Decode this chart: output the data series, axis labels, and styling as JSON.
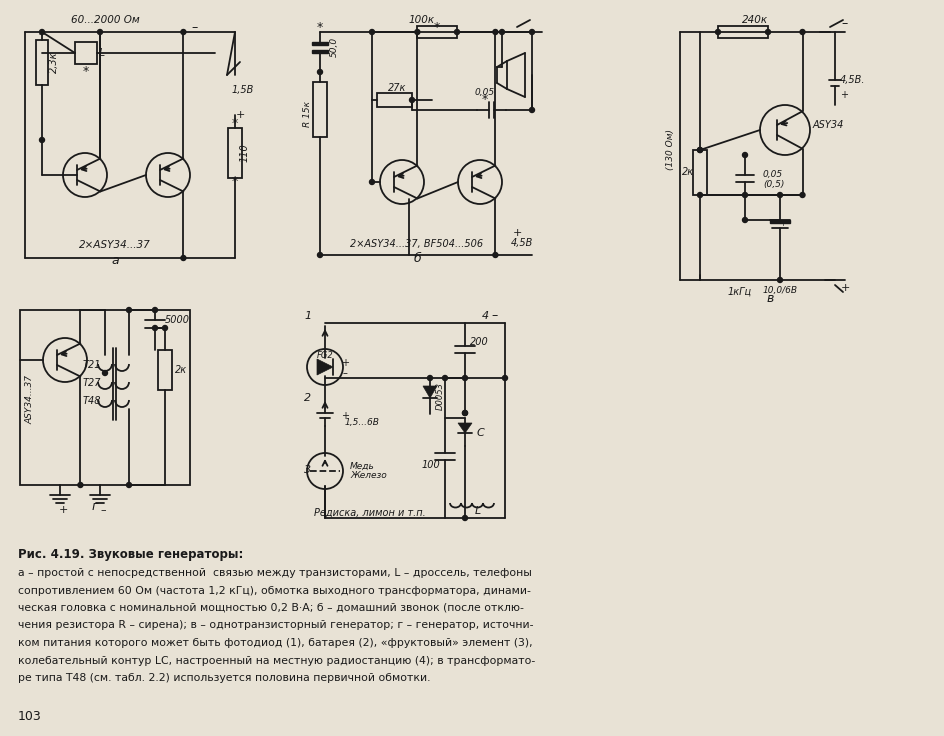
{
  "bg_color": "#e8e2d5",
  "fig_width": 9.44,
  "fig_height": 7.36,
  "dpi": 100,
  "title": "Рис. 4.19. Звуковые генераторы:",
  "caption_lines": [
    "а – простой с непосредственной  связью между транзисторами, L – дроссель, телефоны",
    "сопротивлением 60 Ом (частота 1,2 кГц), обмотка выходного трансформатора, динами-",
    "ческая головка с номинальной мощностью 0,2 В·А; б – домашний звонок (после отклю-",
    "чения резистора R – сирена); в – однотранзисторный генератор; г – генератор, источни-",
    "ком питания которого может быть фотодиод (1), батарея (2), «фруктовый» элемент (3),",
    "колебательный контур LC, настроенный на местную радиостанцию (4); в трансформато-",
    "ре типа Т48 (см. табл. 2.2) используется половина первичной обмотки."
  ],
  "page_number": "103"
}
